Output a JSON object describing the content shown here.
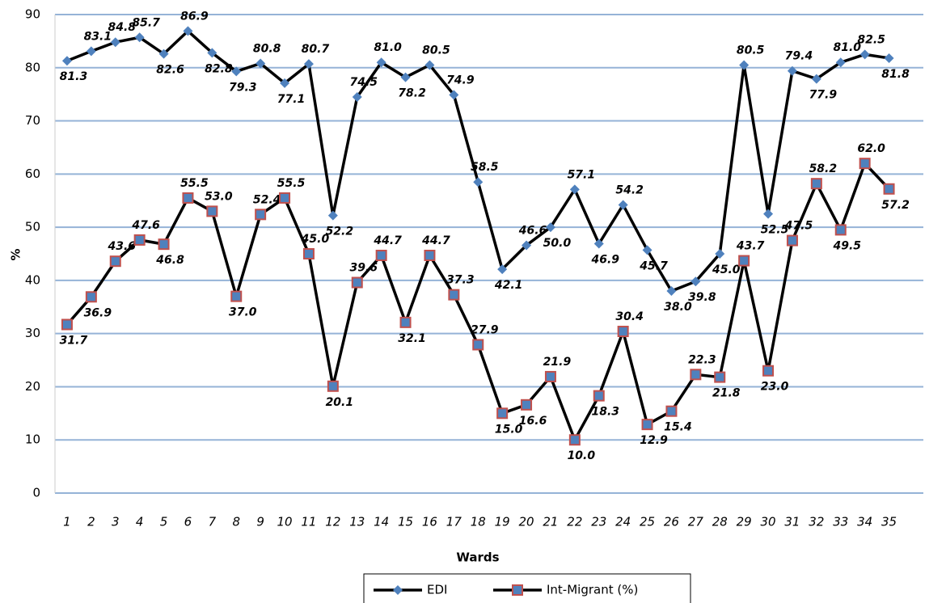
{
  "chart_data": {
    "type": "line",
    "x_label": "Wards",
    "y_label": "%",
    "categories": [
      "1",
      "2",
      "3",
      "4",
      "5",
      "6",
      "7",
      "8",
      "9",
      "10",
      "11",
      "12",
      "13",
      "14",
      "15",
      "16",
      "17",
      "18",
      "19",
      "20",
      "21",
      "22",
      "23",
      "24",
      "25",
      "26",
      "27",
      "28",
      "29",
      "30",
      "31",
      "32",
      "33",
      "34",
      "35"
    ],
    "series": [
      {
        "name": "EDI",
        "color": "#4f81bd",
        "line_color": "#000000",
        "marker": "diamond",
        "values": [
          81.3,
          83.1,
          84.8,
          85.7,
          82.6,
          86.9,
          82.8,
          79.3,
          80.8,
          77.1,
          80.7,
          52.2,
          74.5,
          81.0,
          78.2,
          80.5,
          74.9,
          58.5,
          42.1,
          46.6,
          50.0,
          57.1,
          46.9,
          54.2,
          45.7,
          38.0,
          39.8,
          45.0,
          80.5,
          52.5,
          79.4,
          77.9,
          81.0,
          82.5,
          81.8
        ],
        "value_labels": [
          "81.3",
          "83.1",
          "84.8",
          "85.7",
          "82.6",
          "86.9",
          "82.8",
          "79.3",
          "80.8",
          "77.1",
          "80.7",
          "52.2",
          "74.5",
          "81.0",
          "78.2",
          "80.5",
          "74.9",
          "58.5",
          "42.1",
          "46.6",
          "50.0",
          "57.1",
          "46.9",
          "54.2",
          "45.7",
          "38.0",
          "39.8",
          "45.0",
          "80.5",
          "52.5",
          "79.4",
          "77.9",
          "81.0",
          "82.5",
          "81.8"
        ]
      },
      {
        "name": "Int-Migrant (%)",
        "color": "#4f81bd",
        "line_color": "#000000",
        "marker": "square",
        "marker_edge": "#c0504d",
        "values": [
          31.7,
          36.9,
          43.6,
          47.6,
          46.8,
          55.5,
          53.0,
          37.0,
          52.4,
          55.5,
          45.0,
          20.1,
          39.6,
          44.7,
          32.1,
          44.7,
          37.3,
          27.9,
          15.0,
          16.6,
          21.9,
          10.0,
          18.3,
          30.4,
          12.9,
          15.4,
          22.3,
          21.8,
          43.7,
          23.0,
          47.5,
          58.2,
          49.5,
          62.0,
          57.2
        ],
        "value_labels": [
          "31.7",
          "36.9",
          "43.6",
          "47.6",
          "46.8",
          "55.5",
          "53.0",
          "37.0",
          "52.4",
          "55.5",
          "45.0",
          "20.1",
          "39.6",
          "44.7",
          "32.1",
          "44.7",
          "37.3",
          "27.9",
          "15.0",
          "16.6",
          "21.9",
          "10.0",
          "18.3",
          "30.4",
          "12.9",
          "15.4",
          "22.3",
          "21.8",
          "43.7",
          "23.0",
          "47.5",
          "58.2",
          "49.5",
          "62.0",
          "57.2"
        ]
      }
    ],
    "ylim": [
      0,
      90
    ],
    "yticks": [
      0,
      10,
      20,
      30,
      40,
      50,
      60,
      70,
      80,
      90
    ],
    "grid": true,
    "legend": "bottom"
  }
}
